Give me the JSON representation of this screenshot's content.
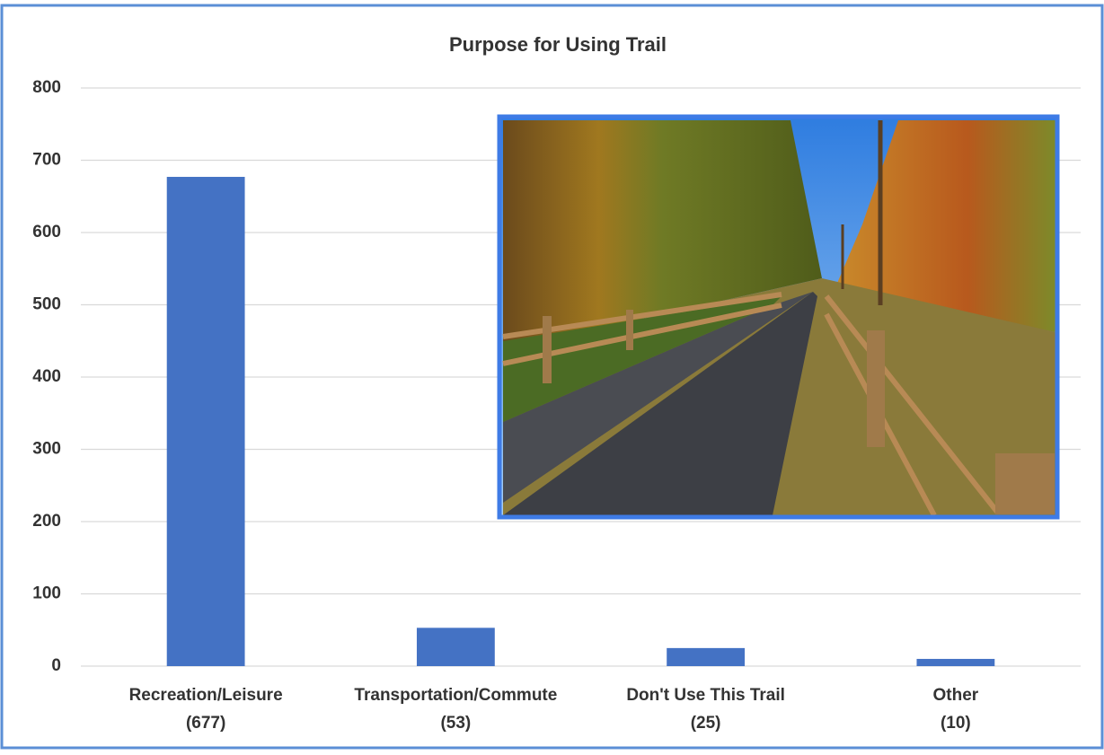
{
  "chart_data": {
    "type": "bar",
    "title": "Purpose for Using Trail",
    "categories": [
      "Recreation/Leisure",
      "Transportation/Commute",
      "Don't Use This Trail",
      "Other"
    ],
    "values": [
      677,
      53,
      25,
      10
    ],
    "value_labels": [
      "(677)",
      "(53)",
      "(25)",
      "(10)"
    ],
    "color": "#4472c4",
    "ylim": [
      0,
      800
    ],
    "yticks": [
      0,
      100,
      200,
      300,
      400,
      500,
      600,
      700,
      800
    ],
    "grid": true
  }
}
